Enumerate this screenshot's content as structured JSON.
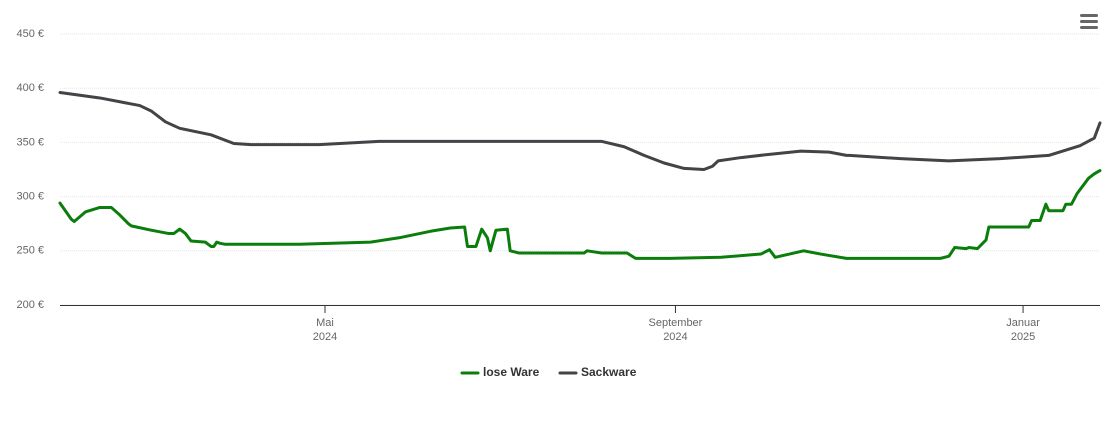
{
  "chart_data": {
    "type": "line",
    "xlim": [
      0,
      365
    ],
    "xticks": [
      {
        "value": 93,
        "label": "Mai 2024"
      },
      {
        "value": 216,
        "label": "September 2024"
      },
      {
        "value": 338,
        "label": "Januar 2025"
      }
    ],
    "ylim": [
      200,
      450
    ],
    "yticks": [
      {
        "value": 200,
        "label": "200 €"
      },
      {
        "value": 250,
        "label": "250 €"
      },
      {
        "value": 300,
        "label": "300 €"
      },
      {
        "value": 350,
        "label": "350 €"
      },
      {
        "value": 400,
        "label": "400 €"
      },
      {
        "value": 450,
        "label": "450 €"
      }
    ],
    "grid": true,
    "legend": "bottom",
    "series": [
      {
        "name": "lose Ware",
        "color": "#0b7d0b",
        "x": [
          0,
          4,
          5,
          9,
          14,
          18,
          21,
          24,
          25,
          32,
          38,
          40,
          42,
          44,
          46,
          51,
          53,
          54,
          55,
          56,
          58,
          84,
          109,
          119,
          130,
          137,
          142,
          143,
          146,
          148,
          150,
          151,
          153,
          157,
          158,
          161,
          184,
          185,
          190,
          199,
          202,
          214,
          232,
          246,
          249,
          251,
          256,
          261,
          267,
          276,
          309,
          312,
          314,
          318,
          319,
          322,
          325,
          326,
          340,
          341,
          344,
          346,
          347,
          352,
          353,
          355,
          357,
          361,
          363,
          365
        ],
        "values": [
          294,
          279,
          277,
          286,
          290,
          290,
          283,
          275,
          273,
          269,
          266,
          266,
          270,
          266,
          259,
          258,
          254,
          254,
          258,
          257,
          256,
          256,
          258,
          262,
          268,
          271,
          272,
          254,
          254,
          270,
          262,
          250,
          269,
          270,
          250,
          248,
          248,
          250,
          248,
          248,
          243,
          243,
          244,
          247,
          251,
          244,
          247,
          250,
          247,
          243,
          243,
          245,
          253,
          252,
          253,
          252,
          260,
          272,
          272,
          278,
          278,
          293,
          287,
          287,
          293,
          293,
          303,
          317,
          321,
          324
        ]
      },
      {
        "name": "Sackware",
        "color": "#434348",
        "x": [
          0,
          14,
          28,
          32,
          37,
          42,
          53,
          61,
          67,
          91,
          112,
          190,
          198,
          205,
          212,
          219,
          226,
          229,
          231,
          239,
          249,
          260,
          270,
          276,
          277,
          295,
          312,
          330,
          347,
          358,
          363,
          365
        ],
        "values": [
          396,
          391,
          384,
          379,
          369,
          363,
          357,
          349,
          348,
          348,
          351,
          351,
          346,
          338,
          331,
          326,
          325,
          328,
          333,
          336,
          339,
          342,
          341,
          338,
          338,
          335,
          333,
          335,
          338,
          347,
          354,
          368
        ]
      }
    ]
  }
}
